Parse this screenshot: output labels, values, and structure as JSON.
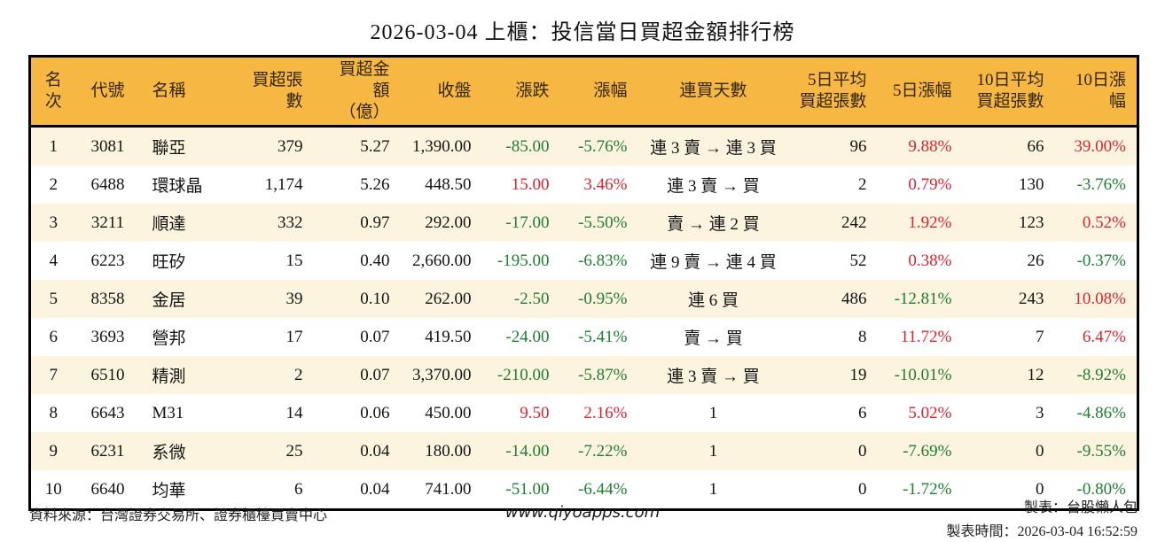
{
  "title": "2026-03-04 上櫃：投信當日買超金額排行榜",
  "colors": {
    "header_bg": "#f6b843",
    "row_stripe_bg": "#fdf4df",
    "up_red": "#dc2430",
    "down_green": "#1e7e34",
    "border": "#000000"
  },
  "chart_data": {
    "type": "table",
    "title": "2026-03-04 上櫃：投信當日買超金額排行榜",
    "column_keys": [
      "rank",
      "code",
      "name",
      "net-buy-lots",
      "net-buy-amount-100m",
      "close",
      "change",
      "change-pct",
      "buy-streak",
      "avg5-net-buy-lots",
      "change-5d-pct",
      "avg10-net-buy-lots",
      "change-10d-pct"
    ],
    "columns": [
      "名次",
      "代號",
      "名稱",
      "買超張數",
      "買超金額\n（億）",
      "收盤",
      "漲跌",
      "漲幅",
      "連買天數",
      "5日平均\n買超張數",
      "5日漲幅",
      "10日平均\n買超張數",
      "10日漲幅"
    ],
    "rows": [
      [
        {
          "v": "1"
        },
        {
          "v": "3081"
        },
        {
          "v": "聯亞"
        },
        {
          "v": "379"
        },
        {
          "v": "5.27"
        },
        {
          "v": "1,390.00"
        },
        {
          "v": "-85.00",
          "c": "down"
        },
        {
          "v": "-5.76%",
          "c": "down"
        },
        {
          "v": "連 3 賣 → 連 3 買"
        },
        {
          "v": "96"
        },
        {
          "v": "9.88%",
          "c": "up"
        },
        {
          "v": "66"
        },
        {
          "v": "39.00%",
          "c": "up"
        }
      ],
      [
        {
          "v": "2"
        },
        {
          "v": "6488"
        },
        {
          "v": "環球晶"
        },
        {
          "v": "1,174"
        },
        {
          "v": "5.26"
        },
        {
          "v": "448.50"
        },
        {
          "v": "15.00",
          "c": "up"
        },
        {
          "v": "3.46%",
          "c": "up"
        },
        {
          "v": "連 3 賣 → 買"
        },
        {
          "v": "2"
        },
        {
          "v": "0.79%",
          "c": "up"
        },
        {
          "v": "130"
        },
        {
          "v": "-3.76%",
          "c": "down"
        }
      ],
      [
        {
          "v": "3"
        },
        {
          "v": "3211"
        },
        {
          "v": "順達"
        },
        {
          "v": "332"
        },
        {
          "v": "0.97"
        },
        {
          "v": "292.00"
        },
        {
          "v": "-17.00",
          "c": "down"
        },
        {
          "v": "-5.50%",
          "c": "down"
        },
        {
          "v": "賣 → 連 2 買"
        },
        {
          "v": "242"
        },
        {
          "v": "1.92%",
          "c": "up"
        },
        {
          "v": "123"
        },
        {
          "v": "0.52%",
          "c": "up"
        }
      ],
      [
        {
          "v": "4"
        },
        {
          "v": "6223"
        },
        {
          "v": "旺矽"
        },
        {
          "v": "15"
        },
        {
          "v": "0.40"
        },
        {
          "v": "2,660.00"
        },
        {
          "v": "-195.00",
          "c": "down"
        },
        {
          "v": "-6.83%",
          "c": "down"
        },
        {
          "v": "連 9 賣 → 連 4 買"
        },
        {
          "v": "52"
        },
        {
          "v": "0.38%",
          "c": "up"
        },
        {
          "v": "26"
        },
        {
          "v": "-0.37%",
          "c": "down"
        }
      ],
      [
        {
          "v": "5"
        },
        {
          "v": "8358"
        },
        {
          "v": "金居"
        },
        {
          "v": "39"
        },
        {
          "v": "0.10"
        },
        {
          "v": "262.00"
        },
        {
          "v": "-2.50",
          "c": "down"
        },
        {
          "v": "-0.95%",
          "c": "down"
        },
        {
          "v": "連 6 買"
        },
        {
          "v": "486"
        },
        {
          "v": "-12.81%",
          "c": "down"
        },
        {
          "v": "243"
        },
        {
          "v": "10.08%",
          "c": "up"
        }
      ],
      [
        {
          "v": "6"
        },
        {
          "v": "3693"
        },
        {
          "v": "營邦"
        },
        {
          "v": "17"
        },
        {
          "v": "0.07"
        },
        {
          "v": "419.50"
        },
        {
          "v": "-24.00",
          "c": "down"
        },
        {
          "v": "-5.41%",
          "c": "down"
        },
        {
          "v": "賣 → 買"
        },
        {
          "v": "8"
        },
        {
          "v": "11.72%",
          "c": "up"
        },
        {
          "v": "7"
        },
        {
          "v": "6.47%",
          "c": "up"
        }
      ],
      [
        {
          "v": "7"
        },
        {
          "v": "6510"
        },
        {
          "v": "精測"
        },
        {
          "v": "2"
        },
        {
          "v": "0.07"
        },
        {
          "v": "3,370.00"
        },
        {
          "v": "-210.00",
          "c": "down"
        },
        {
          "v": "-5.87%",
          "c": "down"
        },
        {
          "v": "連 3 賣 → 買"
        },
        {
          "v": "19"
        },
        {
          "v": "-10.01%",
          "c": "down"
        },
        {
          "v": "12"
        },
        {
          "v": "-8.92%",
          "c": "down"
        }
      ],
      [
        {
          "v": "8"
        },
        {
          "v": "6643"
        },
        {
          "v": "M31"
        },
        {
          "v": "14"
        },
        {
          "v": "0.06"
        },
        {
          "v": "450.00"
        },
        {
          "v": "9.50",
          "c": "up"
        },
        {
          "v": "2.16%",
          "c": "up"
        },
        {
          "v": "1"
        },
        {
          "v": "6"
        },
        {
          "v": "5.02%",
          "c": "up"
        },
        {
          "v": "3"
        },
        {
          "v": "-4.86%",
          "c": "down"
        }
      ],
      [
        {
          "v": "9"
        },
        {
          "v": "6231"
        },
        {
          "v": "系微"
        },
        {
          "v": "25"
        },
        {
          "v": "0.04"
        },
        {
          "v": "180.00"
        },
        {
          "v": "-14.00",
          "c": "down"
        },
        {
          "v": "-7.22%",
          "c": "down"
        },
        {
          "v": "1"
        },
        {
          "v": "0"
        },
        {
          "v": "-7.69%",
          "c": "down"
        },
        {
          "v": "0"
        },
        {
          "v": "-9.55%",
          "c": "down"
        }
      ],
      [
        {
          "v": "10"
        },
        {
          "v": "6640"
        },
        {
          "v": "均華"
        },
        {
          "v": "6"
        },
        {
          "v": "0.04"
        },
        {
          "v": "741.00"
        },
        {
          "v": "-51.00",
          "c": "down"
        },
        {
          "v": "-6.44%",
          "c": "down"
        },
        {
          "v": "1"
        },
        {
          "v": "0"
        },
        {
          "v": "-1.72%",
          "c": "down"
        },
        {
          "v": "0"
        },
        {
          "v": "-0.80%",
          "c": "down"
        }
      ]
    ]
  },
  "footer": {
    "source": "資料來源：台灣證券交易所、證券櫃檯買賣中心",
    "website": "www.qiyoapps.com",
    "maker": "製表：台股懶人包",
    "generated_at": "製表時間：2026-03-04 16:52:59"
  }
}
